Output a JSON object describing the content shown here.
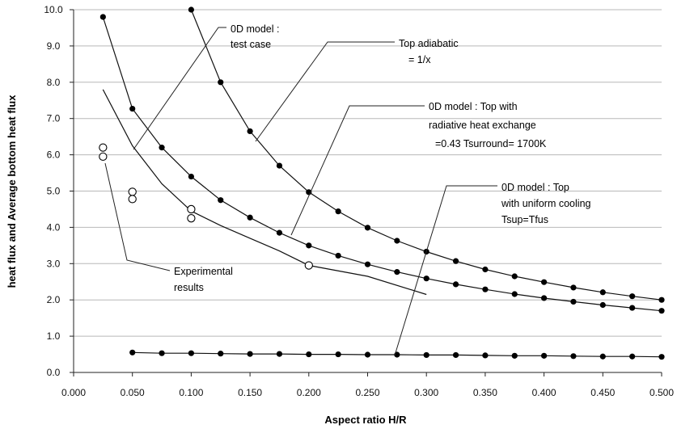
{
  "chart_data": {
    "type": "scatter",
    "xlabel": "Aspect ratio H/R",
    "ylabel": "heat flux  and Average bottom heat flux",
    "xlim": [
      0.0,
      0.5
    ],
    "ylim": [
      0.0,
      10.0
    ],
    "x_ticks": [
      "0.000",
      "0.050",
      "0.100",
      "0.150",
      "0.200",
      "0.250",
      "0.300",
      "0.350",
      "0.400",
      "0.450",
      "0.500"
    ],
    "y_ticks": [
      "0.0",
      "1.0",
      "2.0",
      "3.0",
      "4.0",
      "5.0",
      "6.0",
      "7.0",
      "8.0",
      "9.0",
      "10.0"
    ],
    "grid": "horizontal",
    "series": [
      {
        "marker": "filled-circle",
        "line": true,
        "points": [
          [
            0.1,
            10.0
          ],
          [
            0.125,
            8.0
          ],
          [
            0.15,
            6.65
          ],
          [
            0.175,
            5.7
          ],
          [
            0.2,
            4.97
          ],
          [
            0.225,
            4.44
          ],
          [
            0.25,
            3.99
          ],
          [
            0.275,
            3.63
          ],
          [
            0.3,
            3.33
          ],
          [
            0.325,
            3.07
          ],
          [
            0.35,
            2.84
          ],
          [
            0.375,
            2.65
          ],
          [
            0.4,
            2.49
          ],
          [
            0.425,
            2.34
          ],
          [
            0.45,
            2.21
          ],
          [
            0.475,
            2.1
          ],
          [
            0.5,
            2.0
          ]
        ]
      },
      {
        "marker": "filled-circle",
        "line": true,
        "points": [
          [
            0.025,
            9.8
          ],
          [
            0.05,
            7.27
          ],
          [
            0.075,
            6.2
          ],
          [
            0.1,
            5.4
          ],
          [
            0.125,
            4.75
          ],
          [
            0.15,
            4.27
          ],
          [
            0.175,
            3.85
          ],
          [
            0.2,
            3.5
          ],
          [
            0.225,
            3.22
          ],
          [
            0.25,
            2.98
          ],
          [
            0.275,
            2.77
          ],
          [
            0.3,
            2.59
          ],
          [
            0.325,
            2.43
          ],
          [
            0.35,
            2.29
          ],
          [
            0.375,
            2.16
          ],
          [
            0.4,
            2.05
          ],
          [
            0.425,
            1.95
          ],
          [
            0.45,
            1.86
          ],
          [
            0.475,
            1.78
          ],
          [
            0.5,
            1.7
          ]
        ]
      },
      {
        "marker": "none",
        "line": true,
        "points": [
          [
            0.025,
            7.8
          ],
          [
            0.05,
            6.25
          ],
          [
            0.075,
            5.2
          ],
          [
            0.1,
            4.45
          ],
          [
            0.125,
            4.05
          ],
          [
            0.15,
            3.7
          ],
          [
            0.175,
            3.35
          ],
          [
            0.2,
            2.95
          ],
          [
            0.25,
            2.65
          ],
          [
            0.3,
            2.15
          ]
        ]
      },
      {
        "marker": "filled-circle",
        "line": true,
        "points": [
          [
            0.05,
            0.55
          ],
          [
            0.075,
            0.53
          ],
          [
            0.1,
            0.53
          ],
          [
            0.125,
            0.52
          ],
          [
            0.15,
            0.51
          ],
          [
            0.175,
            0.51
          ],
          [
            0.2,
            0.5
          ],
          [
            0.225,
            0.5
          ],
          [
            0.25,
            0.49
          ],
          [
            0.275,
            0.49
          ],
          [
            0.3,
            0.48
          ],
          [
            0.325,
            0.48
          ],
          [
            0.35,
            0.47
          ],
          [
            0.375,
            0.46
          ],
          [
            0.4,
            0.46
          ],
          [
            0.425,
            0.45
          ],
          [
            0.45,
            0.44
          ],
          [
            0.475,
            0.44
          ],
          [
            0.5,
            0.43
          ]
        ]
      },
      {
        "marker": "open-circle",
        "line": false,
        "points": [
          [
            0.025,
            6.2
          ],
          [
            0.025,
            5.95
          ],
          [
            0.05,
            4.98
          ],
          [
            0.05,
            4.78
          ],
          [
            0.1,
            4.5
          ],
          [
            0.1,
            4.25
          ],
          [
            0.2,
            2.95
          ]
        ]
      }
    ],
    "annotations": [
      {
        "lines": [
          "0D model :",
          "test case"
        ],
        "points_to": [
          0.05,
          6.2
        ]
      },
      {
        "lines": [
          "Top adiabatic",
          "= 1/x"
        ],
        "points_to": [
          0.15,
          6.3
        ]
      },
      {
        "lines": [
          "0D model  : Top  with",
          "radiative heat exchange",
          "=0.43  Tsurround= 1700K"
        ],
        "points_to": [
          0.175,
          3.85
        ]
      },
      {
        "lines": [
          "0D model : Top",
          "with uniform cooling",
          "Tsup=Tfus"
        ],
        "points_to": [
          0.27,
          0.5
        ]
      },
      {
        "lines": [
          "Experimental",
          "results"
        ],
        "points_to": [
          0.025,
          5.95
        ]
      }
    ]
  }
}
